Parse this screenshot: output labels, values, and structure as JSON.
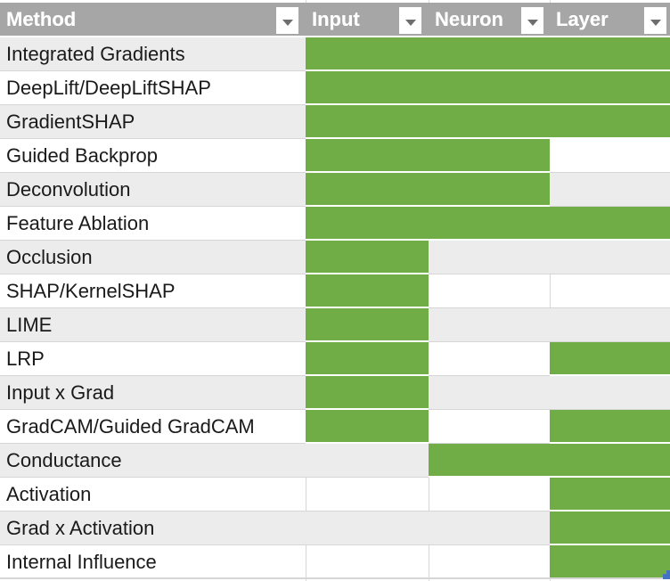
{
  "table": {
    "columns": [
      {
        "label": "Method"
      },
      {
        "label": "Input"
      },
      {
        "label": "Neuron"
      },
      {
        "label": "Layer"
      }
    ],
    "rows": [
      {
        "method": "Integrated Gradients",
        "input": true,
        "neuron": true,
        "layer": true
      },
      {
        "method": "DeepLift/DeepLiftSHAP",
        "input": true,
        "neuron": true,
        "layer": true
      },
      {
        "method": "GradientSHAP",
        "input": true,
        "neuron": true,
        "layer": true
      },
      {
        "method": "Guided Backprop",
        "input": true,
        "neuron": true,
        "layer": false
      },
      {
        "method": "Deconvolution",
        "input": true,
        "neuron": true,
        "layer": false
      },
      {
        "method": "Feature Ablation",
        "input": true,
        "neuron": true,
        "layer": true
      },
      {
        "method": "Occlusion",
        "input": true,
        "neuron": false,
        "layer": false
      },
      {
        "method": "SHAP/KernelSHAP",
        "input": true,
        "neuron": false,
        "layer": false
      },
      {
        "method": "LIME",
        "input": true,
        "neuron": false,
        "layer": false
      },
      {
        "method": "LRP",
        "input": true,
        "neuron": false,
        "layer": true
      },
      {
        "method": "Input x Grad",
        "input": true,
        "neuron": false,
        "layer": false
      },
      {
        "method": "GradCAM/Guided GradCAM",
        "input": true,
        "neuron": false,
        "layer": true
      },
      {
        "method": "Conductance",
        "input": false,
        "neuron": true,
        "layer": true
      },
      {
        "method": "Activation",
        "input": false,
        "neuron": false,
        "layer": true
      },
      {
        "method": "Grad x Activation",
        "input": false,
        "neuron": false,
        "layer": true
      },
      {
        "method": "Internal Influence",
        "input": false,
        "neuron": false,
        "layer": true
      }
    ],
    "colors": {
      "supported_green": "#70ad47",
      "header_bg": "#a6a6a6",
      "header_text": "#ffffff",
      "band_gray": "#ececec",
      "gridline": "#d6d6d6",
      "resize_handle_blue": "#4472c4"
    }
  }
}
